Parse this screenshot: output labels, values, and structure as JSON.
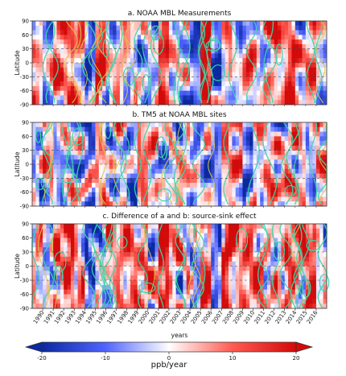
{
  "chart_data": [
    {
      "type": "heatmap",
      "title": "a. NOAA MBL Measurements",
      "ylabel": "Latitude",
      "yticks": [
        "90",
        "60",
        "30",
        "0",
        "-30",
        "-60",
        "-90"
      ],
      "ylim": [
        -90,
        90
      ],
      "xlim": [
        1989,
        2017
      ],
      "contour_color": "#3dd6a8"
    },
    {
      "type": "heatmap",
      "title": "b. TM5 at NOAA MBL sites",
      "ylabel": "Latitude",
      "yticks": [
        "90",
        "60",
        "30",
        "0",
        "-30",
        "-60",
        "-90"
      ],
      "ylim": [
        -90,
        90
      ],
      "xlim": [
        1989,
        2017
      ],
      "contour_color": "#3dd6a8"
    },
    {
      "type": "heatmap",
      "title": "c. Difference of a and b: source-sink effect",
      "ylabel": "Latitude",
      "xlabel": "years",
      "yticks": [
        "90",
        "60",
        "30",
        "0",
        "-30",
        "-60",
        "-90"
      ],
      "xticks": [
        "1990",
        "1991",
        "1992",
        "1993",
        "1994",
        "1995",
        "1996",
        "1997",
        "1998",
        "1999",
        "2000",
        "2001",
        "2002",
        "2003",
        "2004",
        "2005",
        "2006",
        "2007",
        "2008",
        "2009",
        "2010",
        "2011",
        "2012",
        "2013",
        "2014",
        "2015",
        "2016"
      ],
      "ylim": [
        -90,
        90
      ],
      "xlim": [
        1989,
        2017
      ],
      "contour_color": "#3dd6a8"
    }
  ],
  "colorbar": {
    "label": "ppb/year",
    "ticks": [
      "-20",
      "-10",
      "0",
      "10",
      "20"
    ],
    "range": [
      -20,
      20
    ],
    "colormap": "bwr",
    "extend": "both"
  }
}
